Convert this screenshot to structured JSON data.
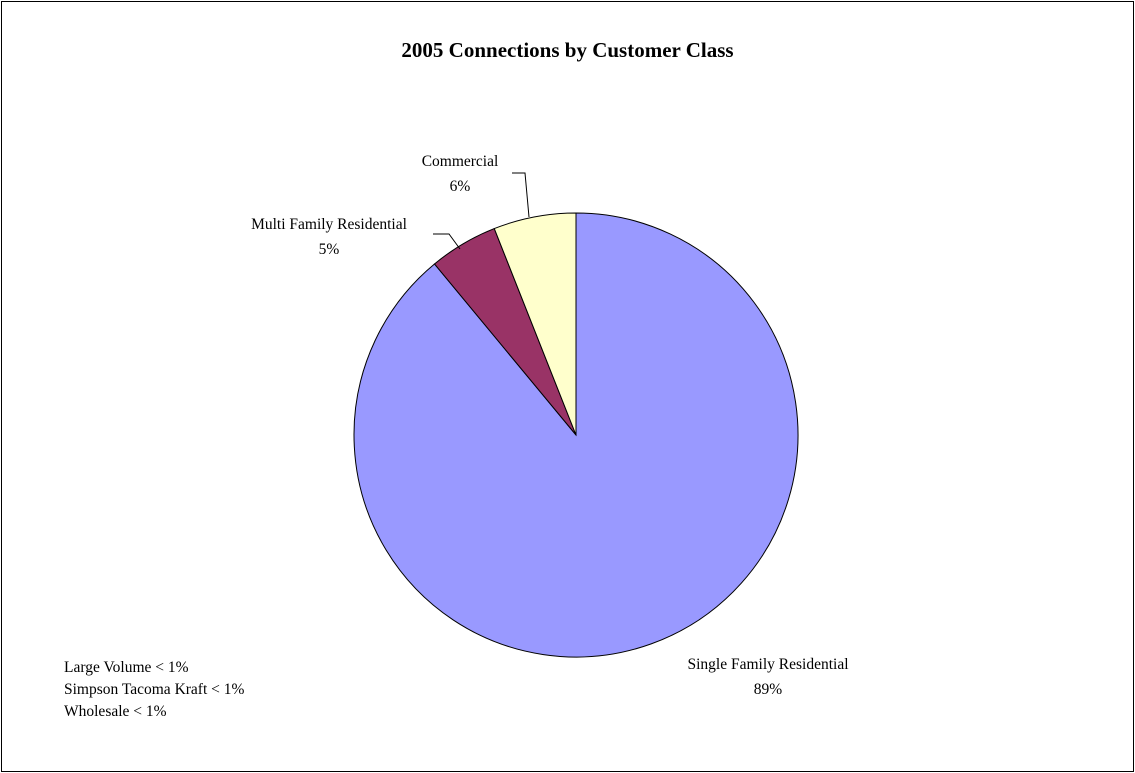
{
  "chart_data": {
    "type": "pie",
    "title": "2005 Connections by Customer Class",
    "slices": [
      {
        "name": "Single Family Residential",
        "value": 89,
        "label": "89%",
        "color": "#9999FF"
      },
      {
        "name": "Multi Family Residential",
        "value": 5,
        "label": "5%",
        "color": "#993366"
      },
      {
        "name": "Commercial",
        "value": 6,
        "label": "6%",
        "color": "#FFFFCC"
      }
    ],
    "notes": [
      "Large Volume < 1%",
      "Simpson Tacoma Kraft < 1%",
      "Wholesale < 1%"
    ],
    "start_angle": "12 o'clock",
    "direction": "clockwise"
  }
}
